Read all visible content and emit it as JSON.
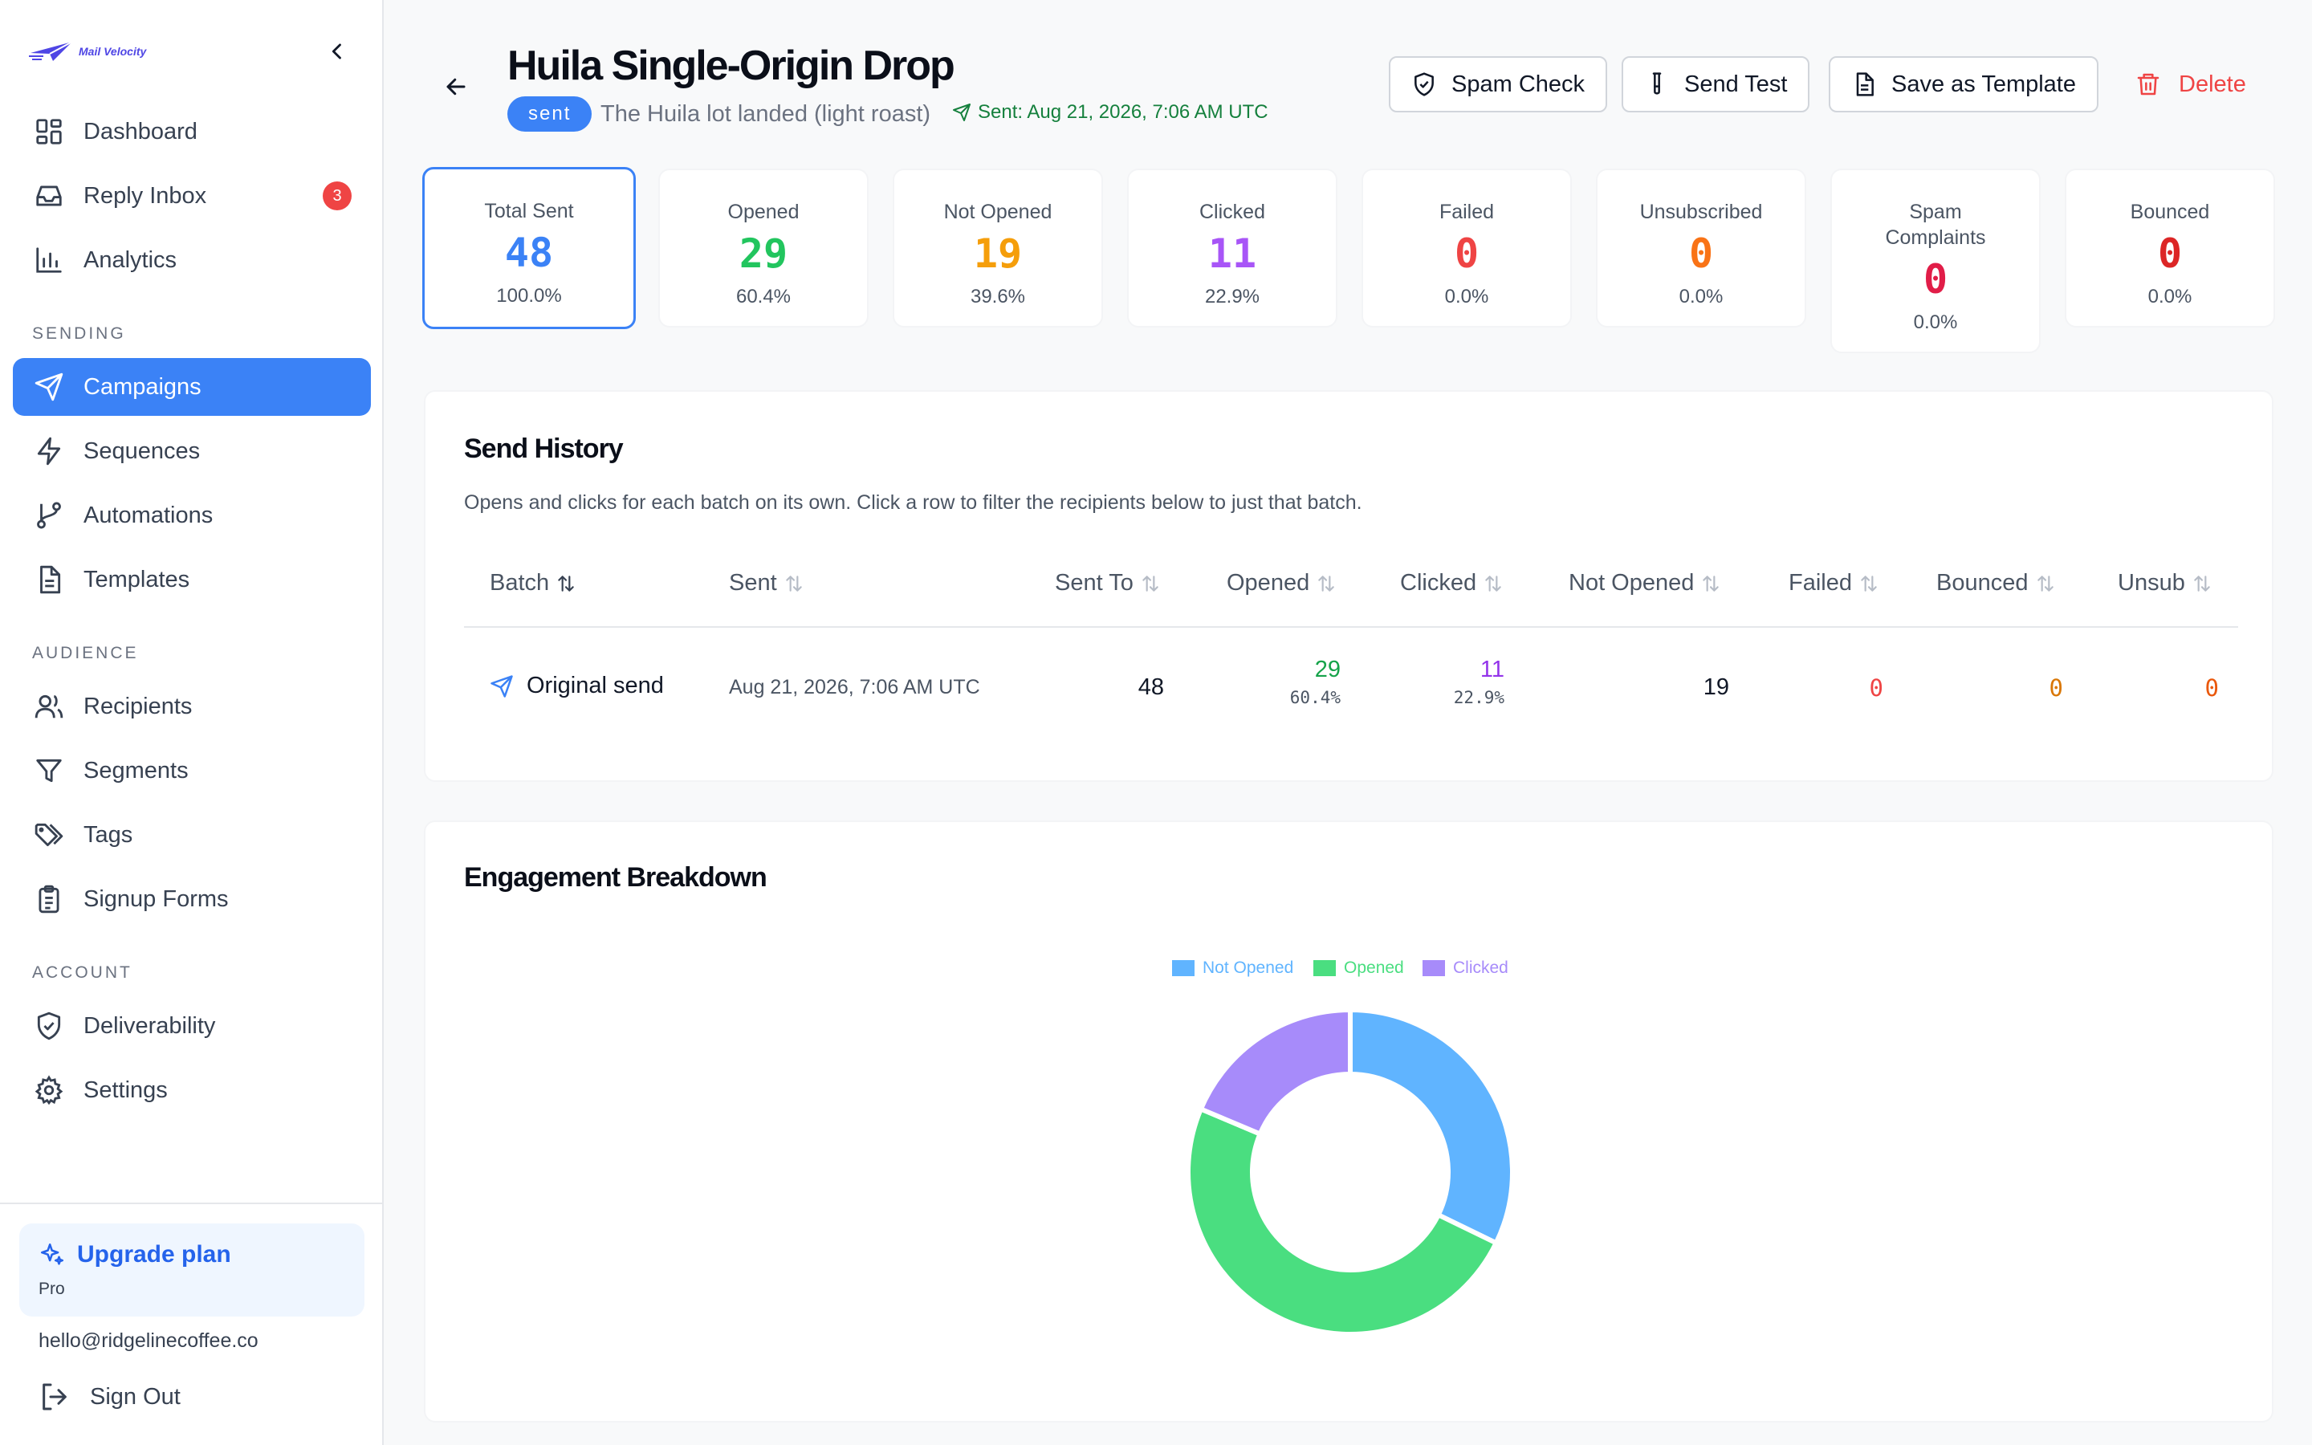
{
  "app": {
    "logo_text": "Mail Velocity"
  },
  "sidebar": {
    "nav_main": [
      {
        "label": "Dashboard",
        "icon": "dashboard-icon"
      },
      {
        "label": "Reply Inbox",
        "icon": "inbox-icon",
        "badge": "3"
      },
      {
        "label": "Analytics",
        "icon": "analytics-icon"
      }
    ],
    "section_sending": "SENDING",
    "nav_sending": [
      {
        "label": "Campaigns",
        "icon": "send-icon",
        "active": true
      },
      {
        "label": "Sequences",
        "icon": "lightning-icon"
      },
      {
        "label": "Automations",
        "icon": "branch-icon"
      },
      {
        "label": "Templates",
        "icon": "document-icon"
      }
    ],
    "section_audience": "AUDIENCE",
    "nav_audience": [
      {
        "label": "Recipients",
        "icon": "users-icon"
      },
      {
        "label": "Segments",
        "icon": "filter-icon"
      },
      {
        "label": "Tags",
        "icon": "tags-icon"
      },
      {
        "label": "Signup Forms",
        "icon": "clipboard-icon"
      }
    ],
    "section_account": "ACCOUNT",
    "nav_account": [
      {
        "label": "Deliverability",
        "icon": "shield-icon"
      },
      {
        "label": "Settings",
        "icon": "gear-icon"
      }
    ],
    "upgrade_label": "Upgrade plan",
    "plan_name": "Pro",
    "user_email": "hello@ridgelinecoffee.co",
    "signout_label": "Sign Out"
  },
  "header": {
    "title": "Huila Single-Origin Drop",
    "status": "sent",
    "subtitle": "The Huila lot landed (light roast)",
    "sent_info": "Sent: Aug 21, 2026, 7:06 AM UTC",
    "buttons": {
      "spam_check": "Spam Check",
      "send_test": "Send Test",
      "save_template": "Save as Template",
      "delete": "Delete"
    }
  },
  "stats": [
    {
      "label": "Total Sent",
      "value": "48",
      "pct": "100.0%",
      "color": "#3b82f6"
    },
    {
      "label": "Opened",
      "value": "29",
      "pct": "60.4%",
      "color": "#22c55e"
    },
    {
      "label": "Not Opened",
      "value": "19",
      "pct": "39.6%",
      "color": "#f59e0b"
    },
    {
      "label": "Clicked",
      "value": "11",
      "pct": "22.9%",
      "color": "#a855f7"
    },
    {
      "label": "Failed",
      "value": "0",
      "pct": "0.0%",
      "color": "#ef4444"
    },
    {
      "label": "Unsubscribed",
      "value": "0",
      "pct": "0.0%",
      "color": "#f97316"
    },
    {
      "label": "Spam Complaints",
      "value": "0",
      "pct": "0.0%",
      "color": "#e11d48"
    },
    {
      "label": "Bounced",
      "value": "0",
      "pct": "0.0%",
      "color": "#dc2626"
    }
  ],
  "send_history": {
    "title": "Send History",
    "description": "Opens and clicks for each batch on its own. Click a row to filter the recipients below to just that batch.",
    "columns": [
      "Batch",
      "Sent",
      "Sent To",
      "Opened",
      "Clicked",
      "Not Opened",
      "Failed",
      "Bounced",
      "Unsub"
    ],
    "rows": [
      {
        "batch": "Original send",
        "sent": "Aug 21, 2026, 7:06 AM UTC",
        "sent_to": "48",
        "opened": "29",
        "opened_pct": "60.4%",
        "clicked": "11",
        "clicked_pct": "22.9%",
        "not_opened": "19",
        "failed": "0",
        "bounced": "0",
        "unsub": "0"
      }
    ]
  },
  "engagement": {
    "title": "Engagement Breakdown"
  },
  "chart_data": {
    "type": "pie",
    "variant": "doughnut",
    "categories": [
      "Not Opened",
      "Opened",
      "Clicked"
    ],
    "values": [
      19,
      29,
      11
    ],
    "colors": [
      "#60b4ff",
      "#4ade80",
      "#a78bfa"
    ],
    "legend_position": "top"
  }
}
